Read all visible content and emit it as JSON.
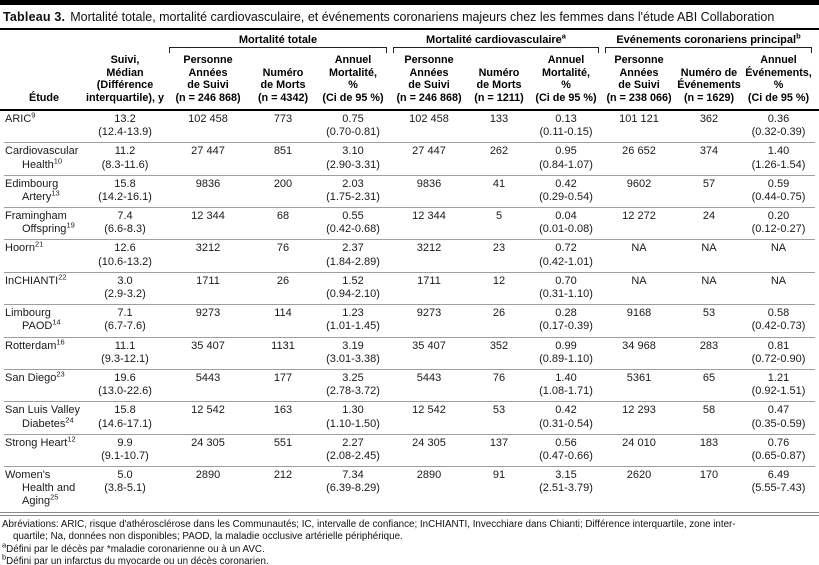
{
  "title": {
    "label": "Tableau 3.",
    "text": "Mortalité totale, mortalité cardiovasculaire, et événements coronariens majeurs chez les femmes dans l'étude ABI Collaboration"
  },
  "header": {
    "etude": "Étude",
    "suivi": "Suivi,\nMédian\n(Différence\ninterquartile), y",
    "groups": [
      {
        "label": "Mortalité totale",
        "sup": "",
        "cols": [
          "Personne\nAnnées\nde Suivi\n(n = 246 868)",
          "Numéro\nde Morts\n(n = 4342)",
          "Annuel\nMortalité,\n%\n(Ci de 95 %)"
        ]
      },
      {
        "label": "Mortalité cardiovasculaire",
        "sup": "a",
        "cols": [
          "Personne\nAnnées\nde Suivi\n(n = 246 868)",
          "Numéro\nde Morts\n(n = 1211)",
          "Annuel\nMortalité,\n%\n(Ci de 95 %)"
        ]
      },
      {
        "label": "Evénements coronariens principal",
        "sup": "b",
        "cols": [
          "Personne\nAnnées\nde Suivi\n(n = 238 066)",
          "Numéro de\nÉvénements\n(n = 1629)",
          "Annuel\nÉvénements,\n%\n(Ci de 95 %)"
        ]
      }
    ]
  },
  "table": {
    "rows": [
      {
        "study": [
          {
            "text": "ARIC",
            "sup": "9"
          }
        ],
        "cells": [
          [
            "13.2",
            "(12.4-13.9)"
          ],
          [
            "102 458"
          ],
          [
            "773"
          ],
          [
            "0.75",
            "(0.70-0.81)"
          ],
          [
            "102 458"
          ],
          [
            "133"
          ],
          [
            "0.13",
            "(0.11-0.15)"
          ],
          [
            "101 121"
          ],
          [
            "362"
          ],
          [
            "0.36",
            "(0.32-0.39)"
          ]
        ]
      },
      {
        "study": [
          {
            "text": "Cardiovascular",
            "sup": ""
          },
          {
            "text": "Health",
            "sup": "10"
          }
        ],
        "cells": [
          [
            "11.2",
            "(8.3-11.6)"
          ],
          [
            "27 447"
          ],
          [
            "851"
          ],
          [
            "3.10",
            "(2.90-3.31)"
          ],
          [
            "27 447"
          ],
          [
            "262"
          ],
          [
            "0.95",
            "(0.84-1.07)"
          ],
          [
            "26 652"
          ],
          [
            "374"
          ],
          [
            "1.40",
            "(1.26-1.54)"
          ]
        ]
      },
      {
        "study": [
          {
            "text": "Edimbourg",
            "sup": ""
          },
          {
            "text": "Artery",
            "sup": "13"
          }
        ],
        "cells": [
          [
            "15.8",
            "(14.2-16.1)"
          ],
          [
            "9836"
          ],
          [
            "200"
          ],
          [
            "2.03",
            "(1.75-2.31)"
          ],
          [
            "9836"
          ],
          [
            "41"
          ],
          [
            "0.42",
            "(0.29-0.54)"
          ],
          [
            "9602"
          ],
          [
            "57"
          ],
          [
            "0.59",
            "(0.44-0.75)"
          ]
        ]
      },
      {
        "study": [
          {
            "text": "Framingham",
            "sup": ""
          },
          {
            "text": "Offspring",
            "sup": "19"
          }
        ],
        "cells": [
          [
            "7.4",
            "(6.6-8.3)"
          ],
          [
            "12 344"
          ],
          [
            "68"
          ],
          [
            "0.55",
            "(0.42-0.68)"
          ],
          [
            "12 344"
          ],
          [
            "5"
          ],
          [
            "0.04",
            "(0.01-0.08)"
          ],
          [
            "12 272"
          ],
          [
            "24"
          ],
          [
            "0.20",
            "(0.12-0.27)"
          ]
        ]
      },
      {
        "study": [
          {
            "text": "Hoorn",
            "sup": "21"
          }
        ],
        "cells": [
          [
            "12.6",
            "(10.6-13.2)"
          ],
          [
            "3212"
          ],
          [
            "76"
          ],
          [
            "2.37",
            "(1.84-2.89)"
          ],
          [
            "3212"
          ],
          [
            "23"
          ],
          [
            "0.72",
            "(0.42-1.01)"
          ],
          [
            "NA"
          ],
          [
            "NA"
          ],
          [
            "NA"
          ]
        ]
      },
      {
        "study": [
          {
            "text": "InCHIANTI",
            "sup": "22"
          }
        ],
        "cells": [
          [
            "3.0",
            "(2.9-3.2)"
          ],
          [
            "1711"
          ],
          [
            "26"
          ],
          [
            "1.52",
            "(0.94-2.10)"
          ],
          [
            "1711"
          ],
          [
            "12"
          ],
          [
            "0.70",
            "(0.31-1.10)"
          ],
          [
            "NA"
          ],
          [
            "NA"
          ],
          [
            "NA"
          ]
        ]
      },
      {
        "study": [
          {
            "text": "Limbourg",
            "sup": ""
          },
          {
            "text": "PAOD",
            "sup": "14"
          }
        ],
        "cells": [
          [
            "7.1",
            "(6.7-7.6)"
          ],
          [
            "9273"
          ],
          [
            "114"
          ],
          [
            "1.23",
            "(1.01-1.45)"
          ],
          [
            "9273"
          ],
          [
            "26"
          ],
          [
            "0.28",
            "(0.17-0.39)"
          ],
          [
            "9168"
          ],
          [
            "53"
          ],
          [
            "0.58",
            "(0.42-0.73)"
          ]
        ]
      },
      {
        "study": [
          {
            "text": "Rotterdam",
            "sup": "16"
          }
        ],
        "cells": [
          [
            "11.1",
            "(9.3-12.1)"
          ],
          [
            "35 407"
          ],
          [
            "1131"
          ],
          [
            "3.19",
            "(3.01-3.38)"
          ],
          [
            "35 407"
          ],
          [
            "352"
          ],
          [
            "0.99",
            "(0.89-1.10)"
          ],
          [
            "34 968"
          ],
          [
            "283"
          ],
          [
            "0.81",
            "(0.72-0.90)"
          ]
        ]
      },
      {
        "study": [
          {
            "text": "San Diego",
            "sup": "23"
          }
        ],
        "cells": [
          [
            "19.6",
            "(13.0-22.6)"
          ],
          [
            "5443"
          ],
          [
            "177"
          ],
          [
            "3.25",
            "(2.78-3.72)"
          ],
          [
            "5443"
          ],
          [
            "76"
          ],
          [
            "1.40",
            "(1.08-1.71)"
          ],
          [
            "5361"
          ],
          [
            "65"
          ],
          [
            "1.21",
            "(0.92-1.51)"
          ]
        ]
      },
      {
        "study": [
          {
            "text": "San Luis Valley",
            "sup": ""
          },
          {
            "text": "Diabetes",
            "sup": "24"
          }
        ],
        "cells": [
          [
            "15.8",
            "(14.6-17.1)"
          ],
          [
            "12 542"
          ],
          [
            "163"
          ],
          [
            "1.30",
            "(1.10-1.50)"
          ],
          [
            "12 542"
          ],
          [
            "53"
          ],
          [
            "0.42",
            "(0.31-0.54)"
          ],
          [
            "12 293"
          ],
          [
            "58"
          ],
          [
            "0.47",
            "(0.35-0.59)"
          ]
        ]
      },
      {
        "study": [
          {
            "text": "Strong Heart",
            "sup": "12"
          }
        ],
        "cells": [
          [
            "9.9",
            "(9.1-10.7)"
          ],
          [
            "24 305"
          ],
          [
            "551"
          ],
          [
            "2.27",
            "(2.08-2.45)"
          ],
          [
            "24 305"
          ],
          [
            "137"
          ],
          [
            "0.56",
            "(0.47-0.66)"
          ],
          [
            "24 010"
          ],
          [
            "183"
          ],
          [
            "0.76",
            "(0.65-0.87)"
          ]
        ]
      },
      {
        "study": [
          {
            "text": "Women's",
            "sup": ""
          },
          {
            "text": "Health and",
            "sup": ""
          },
          {
            "text": "Aging",
            "sup": "25"
          }
        ],
        "cells": [
          [
            "5.0",
            "(3.8-5.1)"
          ],
          [
            "2890"
          ],
          [
            "212"
          ],
          [
            "7.34",
            "(6.39-8.29)"
          ],
          [
            "2890"
          ],
          [
            "91"
          ],
          [
            "3.15",
            "(2.51-3.79)"
          ],
          [
            "2620"
          ],
          [
            "170"
          ],
          [
            "6.49",
            "(5.55-7.43)"
          ]
        ]
      }
    ]
  },
  "footnotes": {
    "abbrev_line1": "Abréviations: ARIC, risque d'athérosclérose dans les Communautés; IC, intervalle de confiance; InCHIANTI, Invecchiare dans Chianti; Différence interquartile, zone inter-",
    "abbrev_line2": "quartile; Na, données non disponibles; PAOD, la maladie occlusive artérielle périphérique.",
    "note_a_sup": "a",
    "note_a": "Défini par le décès par *maladie coronarienne ou à un AVC.",
    "note_b_sup": "b",
    "note_b": "Défini par un infarctus du myocarde ou un décès coronarien."
  }
}
